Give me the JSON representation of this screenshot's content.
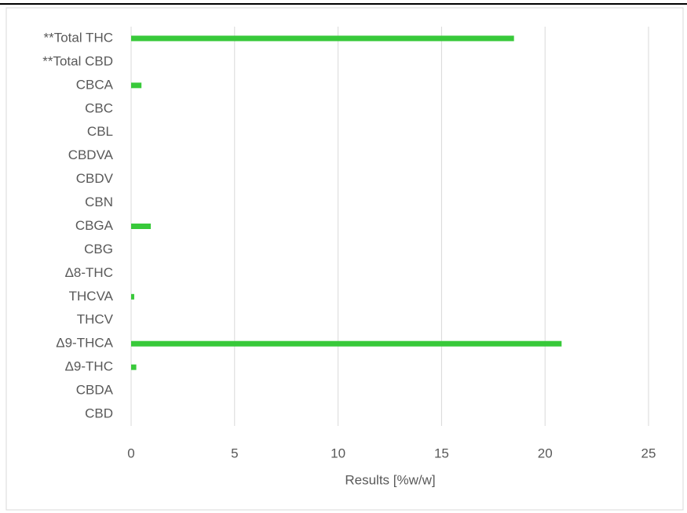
{
  "chart_data": {
    "type": "bar",
    "orientation": "horizontal",
    "categories": [
      "**Total THC",
      "**Total CBD",
      "CBCA",
      "CBC",
      "CBL",
      "CBDVA",
      "CBDV",
      "CBN",
      "CBGA",
      "CBG",
      "Δ8-THC",
      "THCVA",
      "THCV",
      "Δ9-THCA",
      "Δ9-THC",
      "CBDA",
      "CBD"
    ],
    "values": [
      18.5,
      0,
      0.5,
      0,
      0,
      0,
      0,
      0,
      0.95,
      0,
      0,
      0.15,
      0,
      20.8,
      0.25,
      0,
      0
    ],
    "color": "#38c93a",
    "xlabel": "Results [%w/w]",
    "xlim": [
      0,
      25
    ],
    "xticks": [
      0,
      5,
      10,
      15,
      20,
      25
    ],
    "grid": true
  }
}
